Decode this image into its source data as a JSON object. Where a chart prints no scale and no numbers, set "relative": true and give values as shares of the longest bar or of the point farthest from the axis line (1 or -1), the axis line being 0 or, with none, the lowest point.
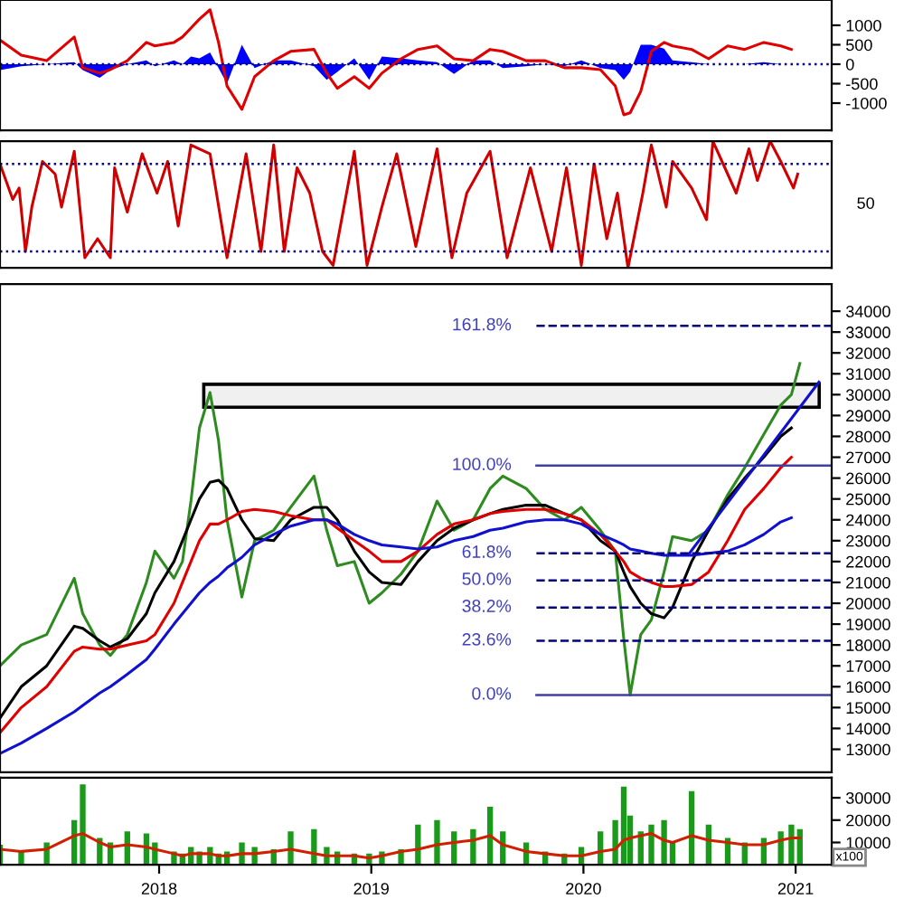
{
  "chart_data": [
    {
      "type": "line",
      "tick_labels": "y",
      "xlim": [
        2017.25,
        2021.17
      ],
      "ylim": [
        -1700,
        1650
      ],
      "yticks": [
        -1000,
        -500,
        0,
        500,
        1000
      ],
      "grid": false,
      "legend": false,
      "x": [
        2017.25,
        2017.35,
        2017.47,
        2017.6,
        2017.64,
        2017.72,
        2017.77,
        2017.85,
        2017.94,
        2017.98,
        2018.07,
        2018.11,
        2018.15,
        2018.19,
        2018.24,
        2018.28,
        2018.32,
        2018.39,
        2018.45,
        2018.54,
        2018.62,
        2018.73,
        2018.79,
        2018.84,
        2018.92,
        2018.99,
        2019.05,
        2019.14,
        2019.22,
        2019.31,
        2019.39,
        2019.48,
        2019.56,
        2019.62,
        2019.73,
        2019.82,
        2019.91,
        2019.99,
        2020.08,
        2020.15,
        2020.19,
        2020.22,
        2020.27,
        2020.32,
        2020.38,
        2020.42,
        2020.51,
        2020.59,
        2020.68,
        2020.76,
        2020.85,
        2020.93,
        2020.98
      ],
      "series": [
        {
          "type": "area",
          "color": "#0000ff",
          "values": [
            -150,
            -50,
            0,
            50,
            -150,
            -350,
            -150,
            0,
            100,
            -50,
            100,
            0,
            200,
            150,
            300,
            -100,
            -500,
            500,
            -100,
            100,
            100,
            -50,
            -400,
            -200,
            150,
            -400,
            200,
            150,
            100,
            50,
            -250,
            100,
            100,
            -100,
            -50,
            0,
            -50,
            100,
            -100,
            -150,
            -400,
            -200,
            500,
            500,
            400,
            100,
            50,
            0,
            0,
            0,
            50,
            0,
            0
          ]
        },
        {
          "type": "line",
          "color": "#e00000",
          "values": [
            620,
            230,
            90,
            700,
            -90,
            -230,
            -140,
            90,
            560,
            470,
            560,
            700,
            930,
            1160,
            1400,
            560,
            -560,
            -1160,
            -320,
            90,
            330,
            380,
            -230,
            -620,
            -320,
            -620,
            -230,
            140,
            380,
            470,
            140,
            90,
            380,
            330,
            90,
            90,
            -90,
            -90,
            -140,
            -560,
            -1300,
            -1250,
            -700,
            330,
            560,
            470,
            380,
            140,
            470,
            380,
            560,
            470,
            380
          ]
        }
      ],
      "ref_lines": [
        {
          "axis": "y",
          "value": 0,
          "color": "#000080",
          "line_style": "dotted"
        }
      ]
    },
    {
      "type": "line",
      "relative": true,
      "tick_labels": "y",
      "xlim": [
        2017.25,
        2021.17
      ],
      "grid": false,
      "legend": false,
      "annotations": [
        "50"
      ],
      "x": [
        2017.25,
        2017.31,
        2017.34,
        2017.37,
        2017.4,
        2017.45,
        2017.51,
        2017.54,
        2017.6,
        2017.65,
        2017.71,
        2017.77,
        2017.79,
        2017.85,
        2017.92,
        2017.99,
        2018.04,
        2018.09,
        2018.15,
        2018.24,
        2018.32,
        2018.41,
        2018.48,
        2018.54,
        2018.59,
        2018.65,
        2018.71,
        2018.77,
        2018.82,
        2018.92,
        2018.98,
        2019.05,
        2019.12,
        2019.21,
        2019.31,
        2019.38,
        2019.45,
        2019.56,
        2019.64,
        2019.75,
        2019.85,
        2019.92,
        2019.99,
        2020.05,
        2020.11,
        2020.16,
        2020.21,
        2020.28,
        2020.32,
        2020.39,
        2020.42,
        2020.51,
        2020.58,
        2020.61,
        2020.68,
        2020.72,
        2020.78,
        2020.82,
        2020.88,
        2020.93,
        2020.99,
        2021.01
      ],
      "series": [
        {
          "color": "#d00000",
          "values": [
            0.82,
            0.54,
            0.63,
            0.13,
            0.48,
            0.84,
            0.74,
            0.48,
            0.92,
            0.08,
            0.23,
            0.08,
            0.79,
            0.44,
            0.9,
            0.59,
            0.84,
            0.33,
            0.97,
            0.9,
            0.08,
            0.9,
            0.13,
            0.97,
            0.13,
            0.79,
            0.59,
            0.13,
            0.02,
            0.92,
            0.02,
            0.48,
            0.9,
            0.17,
            0.94,
            0.08,
            0.59,
            0.92,
            0.08,
            0.79,
            0.13,
            0.79,
            0.02,
            0.82,
            0.23,
            0.59,
            0,
            0.59,
            0.97,
            0.48,
            0.84,
            0.63,
            0.38,
            1,
            0.74,
            0.59,
            0.94,
            0.69,
            1,
            0.84,
            0.63,
            0.74
          ]
        }
      ],
      "ref_lines": [
        {
          "axis": "y",
          "value": 0.82,
          "color": "#000080",
          "line_style": "dotted"
        },
        {
          "axis": "y",
          "value": 0.13,
          "color": "#000080",
          "line_style": "dotted"
        }
      ]
    },
    {
      "type": "line",
      "tick_labels": "y",
      "xlim": [
        2017.25,
        2021.17
      ],
      "ylim": [
        11900,
        35300
      ],
      "yticks": [
        13000,
        14000,
        15000,
        16000,
        17000,
        18000,
        19000,
        20000,
        21000,
        22000,
        23000,
        24000,
        25000,
        26000,
        27000,
        28000,
        29000,
        30000,
        31000,
        32000,
        33000,
        34000
      ],
      "grid": false,
      "legend": false,
      "x": [
        2017.25,
        2017.35,
        2017.47,
        2017.6,
        2017.64,
        2017.72,
        2017.77,
        2017.85,
        2017.94,
        2017.98,
        2018.07,
        2018.11,
        2018.15,
        2018.19,
        2018.24,
        2018.28,
        2018.32,
        2018.39,
        2018.45,
        2018.54,
        2018.62,
        2018.73,
        2018.79,
        2018.84,
        2018.92,
        2018.99,
        2019.05,
        2019.14,
        2019.22,
        2019.31,
        2019.39,
        2019.48,
        2019.56,
        2019.62,
        2019.73,
        2019.82,
        2019.91,
        2019.99,
        2020.08,
        2020.15,
        2020.19,
        2020.22,
        2020.27,
        2020.32,
        2020.38,
        2020.42,
        2020.51,
        2020.59,
        2020.68,
        2020.76,
        2020.85,
        2020.93,
        2020.98,
        2021.02
      ],
      "series": [
        {
          "color": "#2e8b20",
          "values": [
            17000,
            18000,
            18500,
            21200,
            19500,
            18000,
            17500,
            18500,
            21000,
            22500,
            21200,
            22000,
            24900,
            28400,
            30100,
            27800,
            24000,
            20300,
            23000,
            23500,
            24600,
            26100,
            23500,
            21800,
            22000,
            20000,
            20500,
            21400,
            22500,
            24900,
            23500,
            24000,
            25500,
            26100,
            25500,
            24500,
            24000,
            24600,
            23500,
            22500,
            18300,
            15600,
            18500,
            19200,
            21500,
            23200,
            23000,
            23500,
            25200,
            26500,
            28100,
            29500,
            30000,
            31500
          ]
        },
        {
          "color": "#000000",
          "values": [
            14500,
            16000,
            17000,
            18900,
            18800,
            18200,
            17900,
            18300,
            19500,
            20500,
            22000,
            23000,
            24000,
            25000,
            25800,
            25900,
            25500,
            24000,
            23100,
            23000,
            24000,
            24600,
            24600,
            24000,
            22500,
            21500,
            21000,
            20900,
            22000,
            23000,
            23600,
            24000,
            24300,
            24500,
            24700,
            24700,
            24300,
            24000,
            23000,
            22500,
            21500,
            20800,
            20000,
            19500,
            19300,
            19800,
            22000,
            23500,
            25000,
            26000,
            27000,
            28000,
            28400,
            null
          ]
        },
        {
          "color": "#e00000",
          "values": [
            13800,
            15000,
            16000,
            17700,
            17900,
            17800,
            17800,
            18000,
            18200,
            18500,
            20000,
            21000,
            22000,
            23000,
            23800,
            23800,
            24000,
            24400,
            24500,
            24400,
            24200,
            24000,
            24000,
            23600,
            23000,
            22500,
            22000,
            22000,
            22500,
            23300,
            23800,
            24000,
            24300,
            24400,
            24500,
            24500,
            24300,
            24000,
            23300,
            22500,
            22000,
            21500,
            21200,
            21000,
            20800,
            20800,
            20900,
            21500,
            23000,
            24500,
            25500,
            26500,
            27000,
            null
          ]
        },
        {
          "color": "#1010d0",
          "values": [
            12800,
            13300,
            14000,
            14800,
            15100,
            15700,
            16000,
            16600,
            17300,
            17800,
            19000,
            19500,
            20000,
            20500,
            21000,
            21300,
            21700,
            22200,
            22800,
            23300,
            23700,
            24000,
            24000,
            23800,
            23300,
            23000,
            22800,
            22700,
            22600,
            22700,
            23000,
            23200,
            23500,
            23600,
            23900,
            24000,
            24000,
            23800,
            23300,
            23000,
            22800,
            22600,
            22500,
            22400,
            22300,
            22300,
            22300,
            22400,
            22500,
            22800,
            23300,
            23900,
            24100,
            null
          ]
        },
        {
          "color": "#1010d0",
          "x": [
            2020.5,
            2021.11
          ],
          "values": [
            22400,
            30600
          ]
        }
      ],
      "ref_lines": [
        {
          "axis": "y",
          "value": 33300,
          "color": "#000080",
          "line_style": "dashed"
        },
        {
          "axis": "y",
          "value": 26600,
          "color": "#4040a0",
          "line_style": "solid"
        },
        {
          "axis": "y",
          "value": 22400,
          "color": "#000080",
          "line_style": "dashed"
        },
        {
          "axis": "y",
          "value": 21100,
          "color": "#000080",
          "line_style": "dashed"
        },
        {
          "axis": "y",
          "value": 19800,
          "color": "#000080",
          "line_style": "dashed"
        },
        {
          "axis": "y",
          "value": 18200,
          "color": "#000080",
          "line_style": "dashed"
        },
        {
          "axis": "y",
          "value": 15600,
          "color": "#4040a0",
          "line_style": "solid"
        }
      ],
      "annotations": [
        "161.8%",
        "100.0%",
        "61.8%",
        "50.0%",
        "38.2%",
        "23.6%",
        "0.0%"
      ],
      "bands": [
        {
          "axis": "y",
          "from": 29400,
          "to": 30500,
          "color": "#000000"
        }
      ]
    },
    {
      "type": "bar",
      "xlim": [
        2017.25,
        2021.17
      ],
      "xticks": [
        2018,
        2019,
        2020,
        2021
      ],
      "ylim": [
        0,
        39000
      ],
      "yticks": [
        10000,
        20000,
        30000
      ],
      "grid": false,
      "legend": false,
      "annotations": [
        "x100"
      ],
      "x": [
        2017.25,
        2017.35,
        2017.47,
        2017.6,
        2017.64,
        2017.72,
        2017.77,
        2017.85,
        2017.94,
        2017.98,
        2018.07,
        2018.11,
        2018.15,
        2018.19,
        2018.24,
        2018.28,
        2018.32,
        2018.39,
        2018.45,
        2018.54,
        2018.62,
        2018.73,
        2018.79,
        2018.84,
        2018.92,
        2018.99,
        2019.05,
        2019.14,
        2019.22,
        2019.31,
        2019.39,
        2019.48,
        2019.56,
        2019.62,
        2019.73,
        2019.82,
        2019.91,
        2019.99,
        2020.08,
        2020.15,
        2020.19,
        2020.22,
        2020.27,
        2020.32,
        2020.38,
        2020.42,
        2020.51,
        2020.59,
        2020.68,
        2020.76,
        2020.85,
        2020.93,
        2020.98,
        2021.02
      ],
      "series": [
        {
          "color": "#1a9a1a",
          "values": [
            9000,
            6000,
            10000,
            20000,
            36000,
            12000,
            10000,
            15000,
            14000,
            10000,
            6000,
            5000,
            8000,
            6000,
            8000,
            5000,
            6000,
            10000,
            8000,
            7000,
            15000,
            16000,
            8000,
            6000,
            5000,
            5000,
            6000,
            7000,
            18000,
            20000,
            15000,
            16000,
            26000,
            15000,
            10000,
            6000,
            5000,
            8000,
            15000,
            20000,
            35000,
            22000,
            15000,
            18000,
            20000,
            10000,
            33000,
            18000,
            12000,
            10000,
            12000,
            15000,
            18000,
            16000
          ]
        },
        {
          "type": "line",
          "color": "#d02000",
          "values": [
            7000,
            6000,
            7000,
            13000,
            14000,
            10000,
            8000,
            9000,
            8000,
            7000,
            5000,
            4000,
            5000,
            5000,
            5000,
            4000,
            4000,
            5000,
            5000,
            6000,
            7000,
            5000,
            4000,
            4000,
            4000,
            3000,
            4000,
            6000,
            7000,
            9000,
            10000,
            11000,
            13000,
            9000,
            6000,
            5000,
            4000,
            4000,
            6000,
            7000,
            11000,
            12000,
            13000,
            14000,
            11000,
            10000,
            13000,
            11000,
            10000,
            9000,
            9000,
            11000,
            12000,
            12000
          ]
        }
      ]
    }
  ]
}
